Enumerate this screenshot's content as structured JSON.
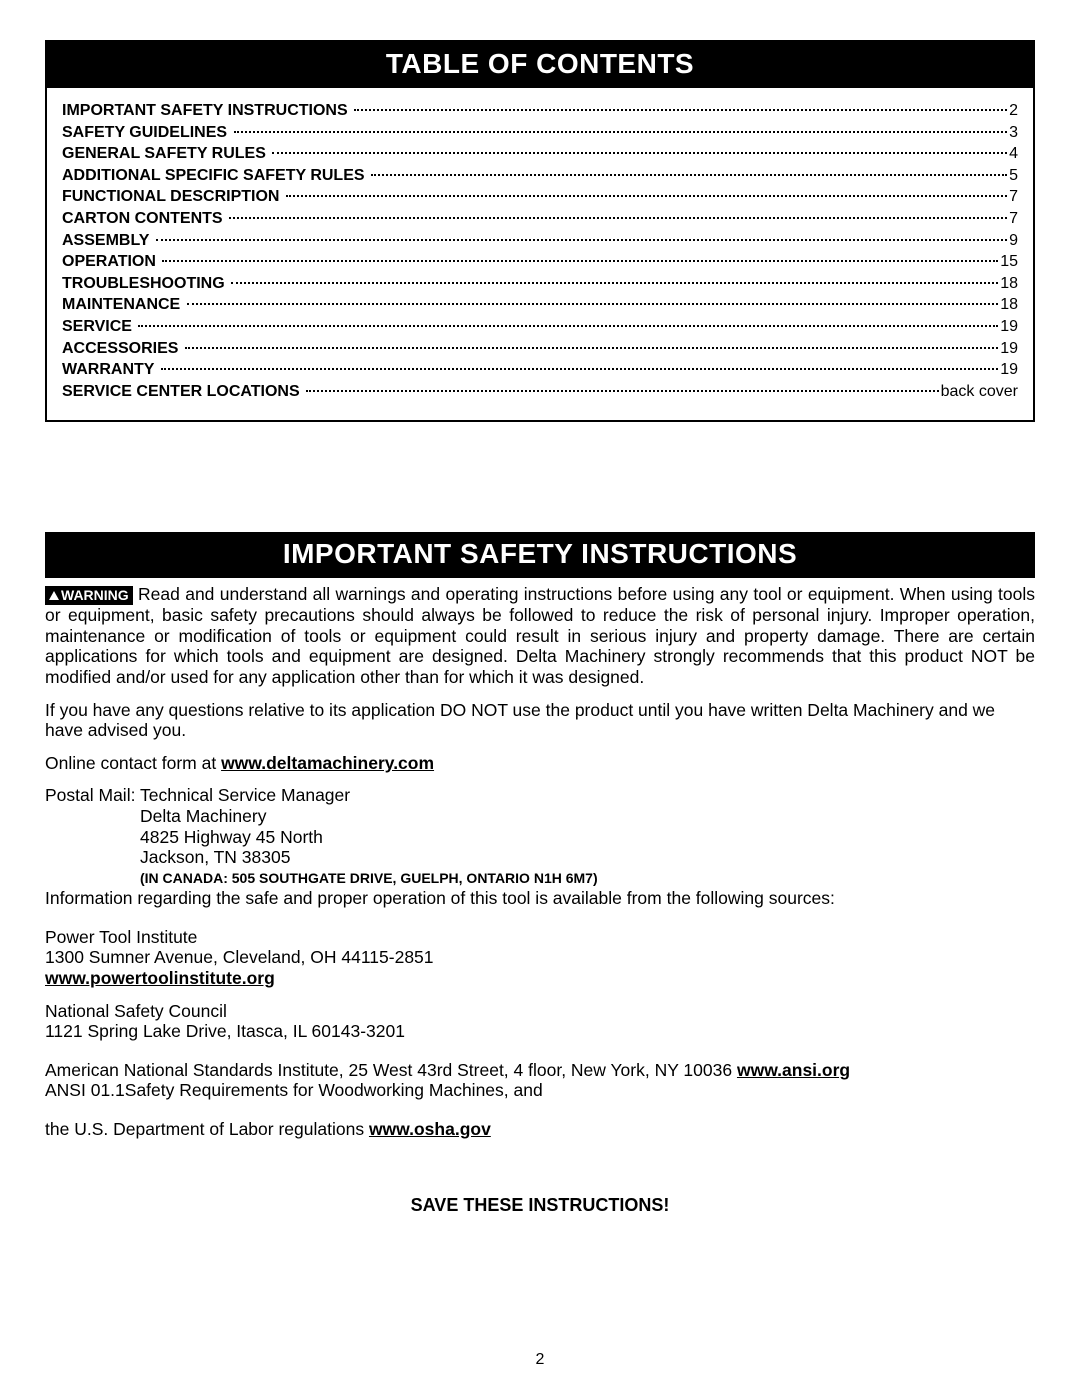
{
  "toc": {
    "title": "TABLE OF CONTENTS",
    "items": [
      {
        "label": "IMPORTANT SAFETY INSTRUCTIONS",
        "page": "2"
      },
      {
        "label": "SAFETY GUIDELINES",
        "page": "3"
      },
      {
        "label": "GENERAL SAFETY RULES",
        "page": "4"
      },
      {
        "label": "ADDITIONAL SPECIFIC SAFETY RULES",
        "page": "5"
      },
      {
        "label": "FUNCTIONAL DESCRIPTION",
        "page": "7"
      },
      {
        "label": "CARTON CONTENTS",
        "page": "7"
      },
      {
        "label": "ASSEMBLY",
        "page": "9"
      },
      {
        "label": "OPERATION",
        "page": "15"
      },
      {
        "label": "TROUBLESHOOTING",
        "page": "18"
      },
      {
        "label": "MAINTENANCE",
        "page": "18"
      },
      {
        "label": "SERVICE",
        "page": "19"
      },
      {
        "label": "ACCESSORIES",
        "page": "19"
      },
      {
        "label": "WARRANTY",
        "page": "19"
      },
      {
        "label": "SERVICE CENTER LOCATIONS",
        "page": "back cover"
      }
    ]
  },
  "safety": {
    "title": "IMPORTANT SAFETY INSTRUCTIONS",
    "warning_label": "WARNING",
    "warning_text": " Read and understand all warnings and operating instructions before using any tool or equipment.  When using tools or equipment, basic safety precautions should always be followed to reduce the risk of personal injury. Improper operation, maintenance or modification of tools or equipment could result in serious injury and property damage. There are certain applications for which tools and equipment are designed. Delta Machinery strongly recommends that this product NOT be modified and/or used for any application other than for which it was designed.",
    "questions": "If you have any questions relative to its application DO NOT use the product until you have written Delta Machinery and we have advised you.",
    "online_prefix": "Online contact form at ",
    "online_link": "www.deltamachinery.com",
    "postal_line": "Postal Mail: Technical Service Manager",
    "postal_addr1": "Delta Machinery",
    "postal_addr2": "4825 Highway 45 North",
    "postal_addr3": "Jackson, TN 38305",
    "canada": "(IN CANADA: 505 SOUTHGATE DRIVE, GUELPH, ONTARIO  N1H 6M7)",
    "info_sources": "Information regarding the safe and proper operation of this tool is available from the following sources:",
    "pti_name": "Power Tool Institute",
    "pti_addr": "1300 Sumner Avenue, Cleveland, OH 44115-2851",
    "pti_link": "www.powertoolinstitute.org",
    "nsc_name": "National Safety Council",
    "nsc_addr": "1121 Spring Lake Drive, Itasca, IL 60143-3201",
    "ansi_prefix": "American National Standards Institute, 25 West 43rd Street, 4 floor, New York, NY 10036 ",
    "ansi_link": "www.ansi.org",
    "ansi_line2": "ANSI 01.1Safety Requirements for Woodworking Machines, and",
    "osha_prefix": "the U.S. Department of Labor regulations ",
    "osha_link": "www.osha.gov",
    "save": "SAVE THESE INSTRUCTIONS!"
  },
  "page_number": "2"
}
